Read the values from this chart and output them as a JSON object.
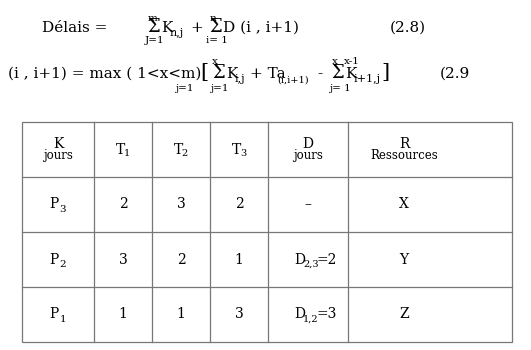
{
  "bg_color": "#ffffff",
  "text_color": "#000000",
  "grid_color": "#777777",
  "col_headers_line1": [
    "K",
    "T",
    "T",
    "T",
    "D",
    "R"
  ],
  "col_headers_sub": [
    "",
    "1",
    "2",
    "3",
    "",
    ""
  ],
  "col_headers_line2": [
    "jours",
    "",
    "",
    "",
    "jours",
    "Ressources"
  ],
  "rows": [
    [
      "P",
      "3",
      "2",
      "3",
      "2",
      "–",
      "X"
    ],
    [
      "P",
      "2",
      "3",
      "2",
      "1",
      "D_{2,3}=2",
      "Y"
    ],
    [
      "P",
      "1",
      "1",
      "1",
      "3",
      "D_{1,2}=3",
      "Z"
    ]
  ]
}
